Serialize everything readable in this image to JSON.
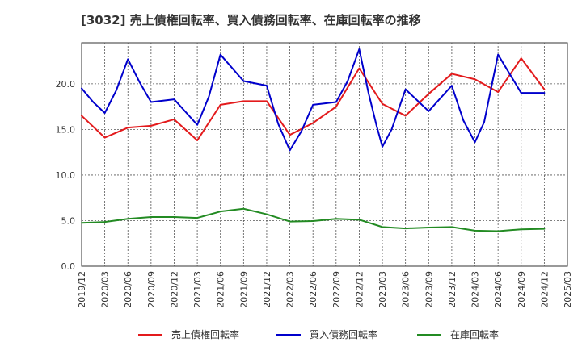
{
  "chart_data": {
    "type": "line",
    "title": "[3032]  売上債権回転率、買入債務回転率、在庫回転率の推移",
    "xlabel": "",
    "ylabel": "",
    "ylim": [
      0,
      24.5
    ],
    "yticks": [
      0.0,
      5.0,
      10.0,
      15.0,
      20.0
    ],
    "ytick_labels": [
      "0.0",
      "5.0",
      "10.0",
      "15.0",
      "20.0"
    ],
    "x": [
      "2019/12",
      "2020/03",
      "2020/06",
      "2020/09",
      "2020/12",
      "2021/03",
      "2021/06",
      "2021/09",
      "2021/12",
      "2022/03",
      "2022/06",
      "2022/09",
      "2022/12",
      "2023/03",
      "2023/06",
      "2023/09",
      "2023/12",
      "2024/03",
      "2024/06",
      "2024/09",
      "2024/12",
      "2025/03"
    ],
    "grid": true,
    "legend_position": "bottom",
    "series": [
      {
        "name": "売上債権回転率",
        "color": "#e31a1c",
        "points": [
          [
            0,
            16.5
          ],
          [
            1,
            14.1
          ],
          [
            2,
            15.2
          ],
          [
            3,
            15.4
          ],
          [
            4,
            16.1
          ],
          [
            5,
            13.8
          ],
          [
            6,
            17.7
          ],
          [
            7,
            18.1
          ],
          [
            8,
            18.1
          ],
          [
            9,
            14.4
          ],
          [
            10,
            15.7
          ],
          [
            11,
            17.5
          ],
          [
            12,
            21.7
          ],
          [
            13,
            17.8
          ],
          [
            14,
            16.5
          ],
          [
            15,
            18.9
          ],
          [
            16,
            21.1
          ],
          [
            17,
            20.5
          ],
          [
            18,
            19.1
          ],
          [
            19,
            22.8
          ],
          [
            20,
            19.4
          ]
        ]
      },
      {
        "name": "買入債務回転率",
        "color": "#0000cc",
        "points": [
          [
            0,
            19.5
          ],
          [
            0.5,
            18.0
          ],
          [
            1,
            16.8
          ],
          [
            1.5,
            19.3
          ],
          [
            2,
            22.7
          ],
          [
            2.5,
            20.2
          ],
          [
            3,
            18.0
          ],
          [
            4,
            18.3
          ],
          [
            5,
            15.5
          ],
          [
            5.5,
            18.6
          ],
          [
            6,
            23.2
          ],
          [
            7,
            20.3
          ],
          [
            8,
            19.8
          ],
          [
            8.5,
            15.6
          ],
          [
            9,
            12.7
          ],
          [
            9.5,
            14.8
          ],
          [
            10,
            17.7
          ],
          [
            11,
            18.0
          ],
          [
            11.5,
            20.3
          ],
          [
            12,
            23.8
          ],
          [
            12.4,
            19.0
          ],
          [
            12.75,
            15.4
          ],
          [
            13,
            13.1
          ],
          [
            13.4,
            15.0
          ],
          [
            14,
            19.4
          ],
          [
            15,
            17.0
          ],
          [
            16,
            19.8
          ],
          [
            16.5,
            16.0
          ],
          [
            17,
            13.6
          ],
          [
            17.4,
            15.8
          ],
          [
            18,
            23.2
          ],
          [
            19,
            19.0
          ],
          [
            20,
            19.0
          ]
        ]
      },
      {
        "name": "在庫回転率",
        "color": "#238b23",
        "points": [
          [
            0,
            4.75
          ],
          [
            1,
            4.85
          ],
          [
            2,
            5.2
          ],
          [
            3,
            5.4
          ],
          [
            4,
            5.4
          ],
          [
            5,
            5.3
          ],
          [
            6,
            6.0
          ],
          [
            7,
            6.3
          ],
          [
            8,
            5.7
          ],
          [
            9,
            4.9
          ],
          [
            10,
            4.95
          ],
          [
            11,
            5.2
          ],
          [
            12,
            5.1
          ],
          [
            13,
            4.3
          ],
          [
            14,
            4.15
          ],
          [
            15,
            4.25
          ],
          [
            16,
            4.3
          ],
          [
            17,
            3.9
          ],
          [
            18,
            3.85
          ],
          [
            19,
            4.05
          ],
          [
            20,
            4.1
          ]
        ]
      }
    ]
  }
}
